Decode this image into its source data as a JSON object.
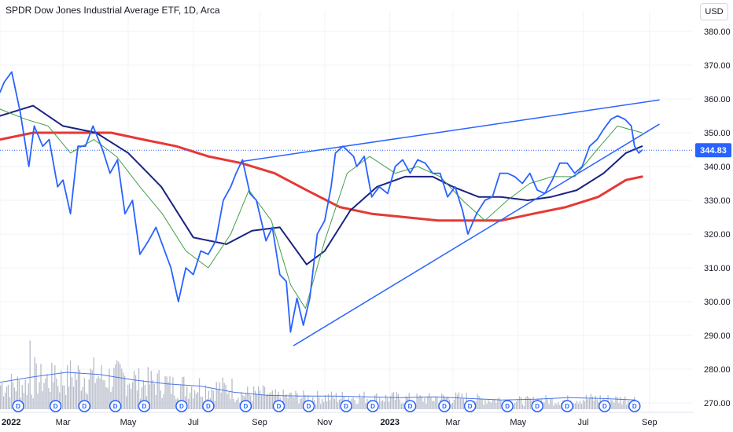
{
  "header": {
    "title": "SPDR Dow Jones Industrial Average ETF, 1D, Arca",
    "currency": "USD"
  },
  "colors": {
    "price_line": "#2962ff",
    "sma_short": "#43a047",
    "sma_mid": "#1a237e",
    "sma_long": "#e53935",
    "trendline": "#2962ff",
    "volume": "#b7bcc9",
    "volume_ma": "#4a76e8",
    "last_price_tag": "#2962ff",
    "dividend_marker": "#2962ff"
  },
  "chart_data": {
    "type": "line",
    "y_axis": {
      "ticks": [
        380,
        370,
        360,
        350,
        340,
        330,
        320,
        310,
        300,
        290,
        280,
        270
      ],
      "tick_labels": [
        "380.00",
        "370.00",
        "360.00",
        "350.00",
        "340.00",
        "330.00",
        "320.00",
        "310.00",
        "300.00",
        "290.00",
        "280.00",
        "270.00"
      ],
      "range": [
        266,
        388
      ],
      "position": "right"
    },
    "x_axis": {
      "range": [
        "2022-01-01",
        "2023-09-10"
      ],
      "tick_labels": [
        {
          "label": "2022",
          "date": "2022-01-01",
          "bold": true
        },
        {
          "label": "Mar",
          "date": "2022-03-01",
          "bold": false
        },
        {
          "label": "May",
          "date": "2022-05-01",
          "bold": false
        },
        {
          "label": "Jul",
          "date": "2022-07-01",
          "bold": false
        },
        {
          "label": "Sep",
          "date": "2022-09-01",
          "bold": false
        },
        {
          "label": "Nov",
          "date": "2022-11-01",
          "bold": false
        },
        {
          "label": "2023",
          "date": "2023-01-01",
          "bold": true
        },
        {
          "label": "Mar",
          "date": "2023-03-01",
          "bold": false
        },
        {
          "label": "May",
          "date": "2023-05-01",
          "bold": false
        },
        {
          "label": "Jul",
          "date": "2023-07-01",
          "bold": false
        },
        {
          "label": "Sep",
          "date": "2023-09-01",
          "bold": false
        }
      ]
    },
    "last_price": {
      "value": 344.83,
      "label": "344.83"
    },
    "series": [
      {
        "key": "price",
        "x": [
          "2022-01-01",
          "2022-01-05",
          "2022-01-12",
          "2022-01-20",
          "2022-01-28",
          "2022-02-02",
          "2022-02-10",
          "2022-02-16",
          "2022-02-24",
          "2022-03-01",
          "2022-03-08",
          "2022-03-15",
          "2022-03-22",
          "2022-03-29",
          "2022-04-07",
          "2022-04-14",
          "2022-04-21",
          "2022-04-28",
          "2022-05-05",
          "2022-05-12",
          "2022-05-20",
          "2022-05-27",
          "2022-06-03",
          "2022-06-10",
          "2022-06-17",
          "2022-06-24",
          "2022-07-01",
          "2022-07-08",
          "2022-07-15",
          "2022-07-22",
          "2022-07-29",
          "2022-08-05",
          "2022-08-10",
          "2022-08-16",
          "2022-08-23",
          "2022-08-29",
          "2022-09-07",
          "2022-09-13",
          "2022-09-20",
          "2022-09-26",
          "2022-09-30",
          "2022-10-06",
          "2022-10-12",
          "2022-10-18",
          "2022-10-25",
          "2022-11-01",
          "2022-11-07",
          "2022-11-11",
          "2022-11-18",
          "2022-11-28",
          "2022-12-01",
          "2022-12-08",
          "2022-12-15",
          "2022-12-22",
          "2022-12-30",
          "2023-01-06",
          "2023-01-13",
          "2023-01-20",
          "2023-01-27",
          "2023-02-03",
          "2023-02-10",
          "2023-02-17",
          "2023-02-24",
          "2023-03-03",
          "2023-03-10",
          "2023-03-15",
          "2023-03-23",
          "2023-03-31",
          "2023-04-07",
          "2023-04-14",
          "2023-04-21",
          "2023-04-28",
          "2023-05-05",
          "2023-05-12",
          "2023-05-19",
          "2023-05-26",
          "2023-06-02",
          "2023-06-09",
          "2023-06-16",
          "2023-06-23",
          "2023-06-30",
          "2023-07-07",
          "2023-07-14",
          "2023-07-20",
          "2023-07-27",
          "2023-08-02",
          "2023-08-09",
          "2023-08-15",
          "2023-08-18",
          "2023-08-22",
          "2023-08-25"
        ],
        "values": [
          362,
          365,
          368,
          356,
          340,
          352,
          346,
          348,
          334,
          336,
          326,
          346,
          346,
          352,
          345,
          338,
          342,
          326,
          330,
          314,
          318,
          322,
          316,
          310,
          300,
          310,
          308,
          315,
          314,
          318,
          330,
          334,
          338,
          342,
          332,
          330,
          318,
          322,
          308,
          306,
          291,
          301,
          293,
          301,
          320,
          324,
          334,
          344,
          346,
          343,
          340,
          343,
          331,
          334,
          332,
          340,
          342,
          338,
          342,
          341,
          338,
          338,
          331,
          334,
          327,
          320,
          326,
          330,
          331,
          338,
          338,
          337,
          335,
          338,
          333,
          332,
          336,
          341,
          341,
          338,
          340,
          346,
          348,
          351,
          354,
          355,
          354,
          352,
          346,
          344,
          344.83
        ]
      },
      {
        "key": "sma_short",
        "x": [
          "2022-01-01",
          "2022-01-25",
          "2022-02-15",
          "2022-03-08",
          "2022-03-30",
          "2022-04-20",
          "2022-05-12",
          "2022-06-02",
          "2022-06-24",
          "2022-07-15",
          "2022-08-05",
          "2022-08-22",
          "2022-09-12",
          "2022-09-30",
          "2022-10-14",
          "2022-11-01",
          "2022-11-22",
          "2022-12-13",
          "2023-01-06",
          "2023-01-27",
          "2023-02-17",
          "2023-03-10",
          "2023-03-31",
          "2023-04-21",
          "2023-05-12",
          "2023-06-02",
          "2023-06-23",
          "2023-07-14",
          "2023-08-02",
          "2023-08-25"
        ],
        "values": [
          357,
          354,
          352,
          344,
          348,
          343,
          334,
          326,
          315,
          310,
          320,
          333,
          324,
          305,
          298,
          318,
          338,
          343,
          338,
          340,
          337,
          330,
          324,
          330,
          335,
          337,
          337,
          345,
          352,
          350
        ]
      },
      {
        "key": "sma_mid",
        "x": [
          "2022-01-01",
          "2022-02-01",
          "2022-03-01",
          "2022-04-01",
          "2022-05-01",
          "2022-06-01",
          "2022-07-01",
          "2022-08-01",
          "2022-08-25",
          "2022-09-20",
          "2022-10-15",
          "2022-11-01",
          "2022-11-25",
          "2022-12-20",
          "2023-01-15",
          "2023-02-10",
          "2023-03-01",
          "2023-03-25",
          "2023-04-15",
          "2023-05-10",
          "2023-06-01",
          "2023-06-25",
          "2023-07-20",
          "2023-08-10",
          "2023-08-25"
        ],
        "values": [
          355,
          358,
          352,
          350,
          344,
          334,
          319,
          317,
          321,
          322,
          311,
          315,
          327,
          334,
          337,
          337,
          334,
          331,
          331,
          330,
          331,
          333,
          338,
          344,
          346
        ]
      },
      {
        "key": "sma_long",
        "x": [
          "2022-01-01",
          "2022-02-01",
          "2022-03-15",
          "2022-04-15",
          "2022-05-15",
          "2022-06-15",
          "2022-07-15",
          "2022-08-15",
          "2022-09-15",
          "2022-10-15",
          "2022-11-15",
          "2022-12-15",
          "2023-01-15",
          "2023-02-15",
          "2023-03-15",
          "2023-04-15",
          "2023-05-15",
          "2023-06-15",
          "2023-07-15",
          "2023-08-10",
          "2023-08-25"
        ],
        "values": [
          348,
          350,
          350,
          350,
          348,
          346,
          343,
          341,
          338,
          333,
          328,
          326,
          325,
          324,
          324,
          324,
          326,
          328,
          331,
          336,
          337
        ]
      },
      {
        "key": "trend_upper",
        "x": [
          "2022-08-15",
          "2023-09-10"
        ],
        "values": [
          341.5,
          359.7
        ]
      },
      {
        "key": "trend_lower",
        "x": [
          "2022-10-03",
          "2023-09-10"
        ],
        "values": [
          287,
          352.5
        ]
      }
    ],
    "dividends": {
      "marker": "D",
      "dates": [
        "2022-01-18",
        "2022-02-22",
        "2022-03-21",
        "2022-04-19",
        "2022-05-16",
        "2022-06-20",
        "2022-07-15",
        "2022-08-19",
        "2022-09-19",
        "2022-10-17",
        "2022-11-21",
        "2022-12-16",
        "2023-01-20",
        "2023-02-21",
        "2023-03-17",
        "2023-04-21",
        "2023-05-19",
        "2023-06-16",
        "2023-07-21",
        "2023-08-18"
      ]
    },
    "volume": {
      "unit": "relative",
      "ma_values": [
        0.35,
        0.42,
        0.48,
        0.45,
        0.38,
        0.33,
        0.3,
        0.22,
        0.18,
        0.17,
        0.17,
        0.16,
        0.15,
        0.16,
        0.14,
        0.12,
        0.13,
        0.15,
        0.14,
        0.12
      ]
    },
    "legend": "none",
    "grid": true
  }
}
